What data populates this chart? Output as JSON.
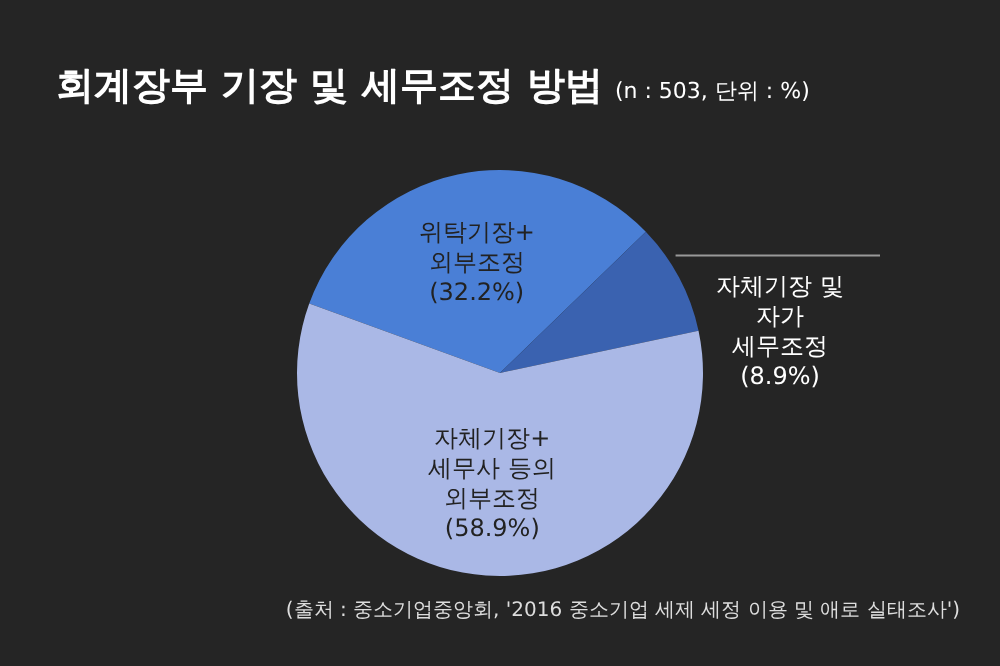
{
  "chart_data": {
    "type": "pie",
    "title": "회계장부 기장 및 세무조정 방법",
    "subtitle": "(n : 503, 단위 : %)",
    "categories": [
      "위탁기장+ 외부조정",
      "자체기장 및 자가 세무조정",
      "자체기장+ 세무사 등의 외부조정"
    ],
    "values": [
      32.2,
      8.9,
      58.9
    ],
    "colors": [
      "#4a7fd6",
      "#3a62b0",
      "#aab8e6"
    ],
    "value_labels": [
      "(32.2%)",
      "(8.9%)",
      "(58.9%)"
    ],
    "annotations": [
      "(출처 : 중소기업중앙회, '2016 중소기업 세제 세정 이용 및 애로 실태조사')"
    ],
    "legend": false
  }
}
